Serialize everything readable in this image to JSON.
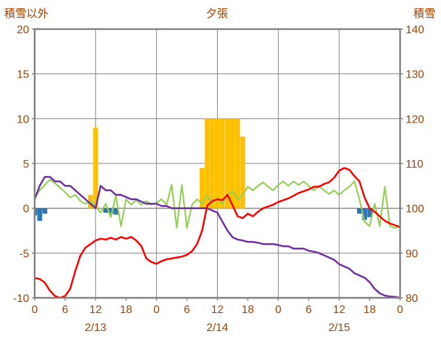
{
  "chart_data": {
    "type": "line",
    "title": "夕張",
    "left_axis": {
      "label": "積雪以外",
      "min": -10,
      "max": 20,
      "ticks": [
        20,
        15,
        10,
        5,
        0,
        -5,
        -10
      ]
    },
    "right_axis": {
      "label": "積雪",
      "min": 80,
      "max": 140,
      "ticks": [
        140,
        130,
        120,
        110,
        100,
        90,
        80
      ]
    },
    "x_axis": {
      "hours_span": 72,
      "tick_interval": 6,
      "tick_labels": [
        "0",
        "6",
        "12",
        "18",
        "0",
        "6",
        "12",
        "18",
        "0",
        "6",
        "12",
        "18",
        "0"
      ],
      "gridline_hours": [
        12,
        24,
        36,
        48,
        60
      ],
      "day_labels": [
        {
          "label": "2/13",
          "center_hour": 12
        },
        {
          "label": "2/14",
          "center_hour": 36
        },
        {
          "label": "2/15",
          "center_hour": 60
        }
      ]
    },
    "series": [
      {
        "name": "orange_bars",
        "type": "bar",
        "axis": "left",
        "color": "#FFC000",
        "values": [
          0,
          0,
          0,
          0,
          0,
          0,
          0,
          0,
          0,
          0,
          0,
          1.5,
          9,
          0,
          0,
          0,
          0,
          0,
          0,
          0,
          0,
          0,
          0,
          0,
          0,
          0,
          0,
          0,
          0,
          0,
          0,
          0,
          0,
          4.5,
          10,
          10,
          10,
          10,
          10,
          10,
          10,
          8,
          0,
          0,
          0,
          0,
          0,
          0,
          0,
          0,
          0,
          0,
          0,
          0,
          0,
          0,
          0,
          0,
          0,
          0,
          0,
          0,
          0,
          0,
          0,
          0,
          0,
          0,
          0,
          0,
          0,
          0,
          0
        ]
      },
      {
        "name": "blue_bars",
        "type": "bar",
        "axis": "left",
        "color": "#2E75B6",
        "values": [
          -0.8,
          -1.4,
          -0.6,
          0,
          0,
          0,
          0,
          0,
          0,
          0,
          0,
          0,
          0,
          0,
          -0.5,
          -0.6,
          -0.7,
          0,
          0,
          0,
          0,
          0,
          0,
          0,
          0,
          0,
          0,
          0,
          0,
          0,
          0,
          0,
          0,
          0,
          0,
          0,
          0,
          0,
          0,
          0,
          0,
          0,
          0,
          0,
          0,
          0,
          0,
          0,
          0,
          0,
          0,
          0,
          0,
          0,
          0,
          0,
          0,
          0,
          0,
          0,
          0,
          0,
          0,
          0,
          -0.6,
          -1.3,
          -1.0,
          0,
          0,
          0,
          0,
          0,
          0
        ]
      },
      {
        "name": "green_line",
        "type": "line",
        "axis": "left",
        "color": "#92D050",
        "values": [
          1.2,
          2.0,
          2.6,
          3.2,
          2.8,
          2.3,
          1.8,
          1.2,
          1.5,
          0.8,
          0.5,
          0.8,
          0.2,
          -0.5,
          0.5,
          -1.0,
          1.4,
          -2.0,
          1.0,
          0.4,
          0.9,
          0.4,
          0.8,
          0.4,
          0.6,
          1.0,
          0.4,
          2.6,
          -2.2,
          2.6,
          -2.2,
          0.4,
          1.0,
          0.5,
          1.4,
          0.6,
          1.0,
          0.5,
          1.5,
          1.9,
          1.0,
          1.5,
          2.4,
          2.0,
          2.5,
          2.9,
          2.4,
          2.0,
          2.6,
          3.0,
          2.5,
          3.0,
          2.6,
          3.0,
          2.5,
          2.0,
          2.5,
          2.0,
          1.6,
          2.0,
          1.5,
          2.0,
          2.4,
          3.0,
          1.0,
          -1.5,
          -2.0,
          0.5,
          -2.0,
          2.4,
          -2.0,
          -2.2,
          -2.0
        ]
      },
      {
        "name": "purple_line",
        "type": "line",
        "axis": "right",
        "color": "#7030A0",
        "values": [
          102,
          105,
          107,
          107,
          106,
          106,
          105,
          105,
          104,
          103,
          102,
          101,
          100,
          105,
          104,
          104,
          103,
          103,
          102.5,
          102,
          102,
          101.5,
          101,
          101,
          101,
          100.5,
          100.5,
          100,
          100,
          100,
          100,
          100,
          100,
          100,
          100,
          99.5,
          99,
          97,
          95,
          93.5,
          93,
          92.8,
          92.5,
          92.5,
          92.3,
          92,
          92,
          92,
          91.8,
          91.5,
          91.5,
          91,
          91,
          91,
          90.5,
          90.3,
          90,
          89.5,
          89,
          88.5,
          87.5,
          87,
          86.5,
          85.5,
          85,
          84.5,
          83.5,
          82,
          81,
          80.5,
          80.3,
          80.2,
          80
        ]
      },
      {
        "name": "red_line",
        "type": "line",
        "axis": "left",
        "color": "#FF0000",
        "values": [
          -7.8,
          -7.9,
          -8.3,
          -9.2,
          -9.8,
          -10,
          -9.8,
          -9.0,
          -7.0,
          -5.3,
          -4.4,
          -4.0,
          -3.6,
          -3.4,
          -3.5,
          -3.3,
          -3.5,
          -3.2,
          -3.4,
          -3.2,
          -3.6,
          -4.2,
          -5.6,
          -6.0,
          -6.2,
          -5.9,
          -5.7,
          -5.6,
          -5.5,
          -5.4,
          -5.2,
          -4.8,
          -4.0,
          -2.5,
          0.3,
          0.8,
          1.0,
          0.9,
          1.5,
          0.3,
          -0.9,
          -1.1,
          -0.6,
          -0.9,
          -0.4,
          0.0,
          0.2,
          0.4,
          0.7,
          0.9,
          1.1,
          1.4,
          1.7,
          1.9,
          2.1,
          2.4,
          2.4,
          2.7,
          2.9,
          3.4,
          4.2,
          4.5,
          4.3,
          3.6,
          3.0,
          1.2,
          0.0,
          -0.4,
          -0.9,
          -1.4,
          -1.7,
          -1.9,
          -2.1
        ]
      }
    ],
    "colors": {
      "text": "#A04000",
      "grid": "#808080",
      "border": "#808080",
      "background": "#FFFFFF"
    },
    "legend": "none"
  }
}
